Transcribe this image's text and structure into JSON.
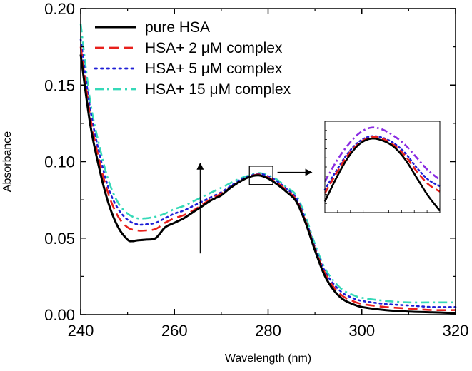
{
  "chart_data": {
    "type": "line",
    "title": "",
    "xlabel": "Wavelength (nm)",
    "ylabel": "Absorbance",
    "xlim": [
      240,
      320
    ],
    "ylim": [
      0.0,
      0.2
    ],
    "xticks": [
      240,
      260,
      280,
      300,
      320
    ],
    "xtick_labels": [
      "240",
      "260",
      "280",
      "300",
      "320"
    ],
    "yticks": [
      0.0,
      0.05,
      0.1,
      0.15,
      0.2
    ],
    "ytick_labels": [
      "0.00",
      "0.05",
      "0.10",
      "0.15",
      "0.20"
    ],
    "grid": false,
    "legend_position": "top-left",
    "series": [
      {
        "name": "pure HSA",
        "color": "#000000",
        "dash": "solid",
        "x": [
          240,
          242,
          244,
          246,
          248,
          250,
          251,
          252,
          254,
          256,
          258,
          260,
          262,
          264,
          266,
          268,
          270,
          272,
          274,
          276,
          278,
          280,
          282,
          284,
          286,
          288,
          290,
          292,
          294,
          296,
          298,
          300,
          305,
          310,
          315,
          320
        ],
        "y": [
          0.17,
          0.125,
          0.095,
          0.072,
          0.057,
          0.049,
          0.048,
          0.0485,
          0.049,
          0.05,
          0.057,
          0.06,
          0.063,
          0.067,
          0.071,
          0.075,
          0.078,
          0.083,
          0.087,
          0.09,
          0.091,
          0.089,
          0.085,
          0.08,
          0.074,
          0.06,
          0.042,
          0.026,
          0.016,
          0.01,
          0.007,
          0.005,
          0.003,
          0.002,
          0.0015,
          0.001
        ]
      },
      {
        "name": "HSA+ 2 μM complex",
        "color": "#e8201c",
        "dash": "dashed",
        "x": [
          240,
          242,
          244,
          246,
          248,
          250,
          252,
          254,
          256,
          258,
          260,
          262,
          264,
          266,
          268,
          270,
          272,
          274,
          276,
          278,
          280,
          282,
          284,
          286,
          288,
          290,
          292,
          294,
          296,
          298,
          300,
          305,
          310,
          315,
          320
        ],
        "y": [
          0.175,
          0.13,
          0.1,
          0.078,
          0.064,
          0.057,
          0.055,
          0.055,
          0.056,
          0.06,
          0.063,
          0.065,
          0.068,
          0.072,
          0.076,
          0.079,
          0.083,
          0.087,
          0.09,
          0.0915,
          0.0895,
          0.086,
          0.081,
          0.075,
          0.061,
          0.043,
          0.028,
          0.018,
          0.012,
          0.009,
          0.007,
          0.005,
          0.004,
          0.003,
          0.003
        ]
      },
      {
        "name": "HSA+ 5 μM complex",
        "color": "#1f1fd6",
        "dash": "dotted",
        "x": [
          240,
          242,
          244,
          246,
          248,
          250,
          252,
          254,
          256,
          258,
          260,
          262,
          264,
          266,
          268,
          270,
          272,
          274,
          276,
          278,
          280,
          282,
          284,
          286,
          288,
          290,
          292,
          294,
          296,
          298,
          300,
          305,
          310,
          315,
          320
        ],
        "y": [
          0.18,
          0.135,
          0.105,
          0.082,
          0.069,
          0.062,
          0.059,
          0.059,
          0.06,
          0.063,
          0.066,
          0.068,
          0.071,
          0.074,
          0.077,
          0.08,
          0.084,
          0.088,
          0.0905,
          0.092,
          0.0905,
          0.087,
          0.082,
          0.076,
          0.062,
          0.044,
          0.029,
          0.02,
          0.014,
          0.011,
          0.009,
          0.007,
          0.006,
          0.005,
          0.005
        ]
      },
      {
        "name": "HSA+ 15 μM complex",
        "color": "#35d9b8",
        "dash": "dashdot",
        "x": [
          240,
          242,
          244,
          246,
          248,
          250,
          252,
          254,
          256,
          258,
          260,
          262,
          264,
          266,
          268,
          270,
          272,
          274,
          276,
          278,
          280,
          282,
          284,
          286,
          288,
          290,
          292,
          294,
          296,
          298,
          300,
          305,
          310,
          315,
          320
        ],
        "y": [
          0.19,
          0.14,
          0.11,
          0.087,
          0.073,
          0.066,
          0.063,
          0.063,
          0.064,
          0.066,
          0.069,
          0.071,
          0.074,
          0.077,
          0.08,
          0.083,
          0.086,
          0.089,
          0.091,
          0.0925,
          0.091,
          0.088,
          0.083,
          0.078,
          0.064,
          0.046,
          0.031,
          0.022,
          0.016,
          0.013,
          0.011,
          0.009,
          0.008,
          0.008,
          0.008
        ]
      }
    ],
    "inset": {
      "description": "magnified peak region near 278 nm",
      "xlim": [
        276,
        281
      ],
      "ylim": [
        0.0,
        1.0
      ],
      "series": [
        {
          "color": "#000000",
          "dash": "solid",
          "x": [
            276,
            276.5,
            277,
            277.5,
            278,
            278.5,
            279,
            279.5,
            280,
            280.5,
            281
          ],
          "y": [
            0.12,
            0.38,
            0.6,
            0.75,
            0.81,
            0.79,
            0.72,
            0.58,
            0.38,
            0.18,
            0.02
          ]
        },
        {
          "color": "#e8201c",
          "dash": "dashed",
          "x": [
            276,
            276.5,
            277,
            277.5,
            278,
            278.5,
            279,
            279.5,
            280,
            280.5,
            281
          ],
          "y": [
            0.21,
            0.43,
            0.63,
            0.76,
            0.825,
            0.81,
            0.74,
            0.62,
            0.45,
            0.31,
            0.23
          ]
        },
        {
          "color": "#1f1fd6",
          "dash": "dotted",
          "x": [
            276,
            276.5,
            277,
            277.5,
            278,
            278.5,
            279,
            279.5,
            280,
            280.5,
            281
          ],
          "y": [
            0.25,
            0.46,
            0.65,
            0.78,
            0.835,
            0.82,
            0.76,
            0.65,
            0.49,
            0.36,
            0.29
          ]
        },
        {
          "color": "#8a2be2",
          "dash": "dashdot",
          "x": [
            276,
            276.5,
            277,
            277.5,
            278,
            278.5,
            279,
            279.5,
            280,
            280.5,
            281
          ],
          "y": [
            0.34,
            0.56,
            0.74,
            0.87,
            0.93,
            0.91,
            0.84,
            0.74,
            0.6,
            0.46,
            0.36
          ]
        }
      ]
    },
    "annotations": [
      {
        "type": "arrow",
        "description": "vertical arrow pointing up indicating increasing absorbance",
        "x": 265.5,
        "y_from": 0.04,
        "y_to": 0.098
      },
      {
        "type": "box",
        "description": "rectangle marking magnified peak region",
        "x_from": 276,
        "x_to": 281,
        "y_from": 0.085,
        "y_to": 0.097
      },
      {
        "type": "arrow",
        "description": "horizontal arrow from marked region toward inset",
        "y": 0.093,
        "x_from": 282,
        "x_to": 289
      }
    ]
  }
}
